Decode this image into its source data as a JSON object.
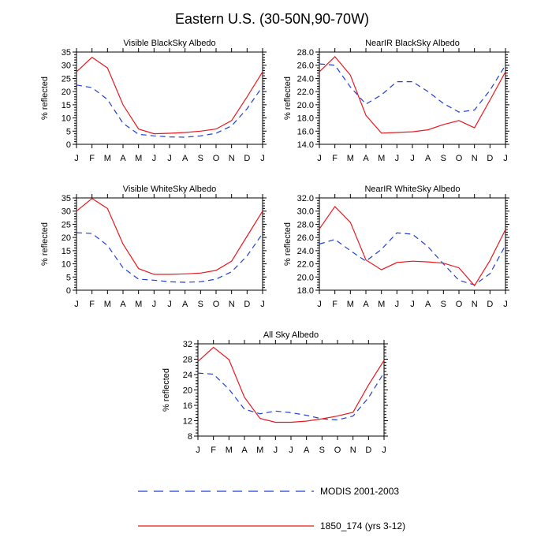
{
  "title": "Eastern U.S. (30-50N,90-70W)",
  "ylabel": "% reflected",
  "months": [
    "J",
    "F",
    "M",
    "A",
    "M",
    "J",
    "J",
    "A",
    "S",
    "O",
    "N",
    "D",
    "J"
  ],
  "colors": {
    "modis": "#1f3fd6",
    "model": "#e8181e"
  },
  "legend": [
    {
      "label": "MODIS 2001-2003",
      "style": "dashed",
      "color": "#1f3fd6"
    },
    {
      "label": "1850_174 (yrs 3-12)",
      "style": "solid",
      "color": "#e8181e"
    }
  ],
  "chart_data": [
    {
      "type": "line",
      "title": "Visible BlackSky Albedo",
      "ylim": [
        0,
        35
      ],
      "yticks": [
        0,
        5,
        10,
        15,
        20,
        25,
        30,
        35
      ],
      "ytick_labels": [
        "0",
        "5",
        "10",
        "15",
        "20",
        "25",
        "30",
        "35"
      ],
      "series": [
        {
          "name": "MODIS 2001-2003",
          "values": [
            22.5,
            21.5,
            17,
            8,
            3.8,
            3.2,
            2.8,
            2.7,
            3.2,
            4.2,
            7,
            13.5,
            22
          ]
        },
        {
          "name": "1850_174 (yrs 3-12)",
          "values": [
            27.5,
            33,
            29,
            15,
            5.8,
            4,
            4.2,
            4.5,
            5,
            5.8,
            9,
            18,
            27.5
          ]
        }
      ]
    },
    {
      "type": "line",
      "title": "NearIR BlackSky Albedo",
      "ylim": [
        14,
        28
      ],
      "yticks": [
        14,
        16,
        18,
        20,
        22,
        24,
        26,
        28
      ],
      "ytick_labels": [
        "14.0",
        "16.0",
        "18.0",
        "20.0",
        "22.0",
        "24.0",
        "26.0",
        "28.0"
      ],
      "series": [
        {
          "name": "MODIS 2001-2003",
          "values": [
            26.2,
            26,
            22.7,
            20.1,
            21.5,
            23.5,
            23.5,
            22,
            20.2,
            18.9,
            19.2,
            22.2,
            26
          ]
        },
        {
          "name": "1850_174 (yrs 3-12)",
          "values": [
            25,
            27.3,
            24.5,
            18.4,
            15.7,
            15.8,
            15.9,
            16.2,
            17,
            17.6,
            16.5,
            20.7,
            25
          ]
        }
      ]
    },
    {
      "type": "line",
      "title": "Visible WhiteSky Albedo",
      "ylim": [
        0,
        35
      ],
      "yticks": [
        0,
        5,
        10,
        15,
        20,
        25,
        30,
        35
      ],
      "ytick_labels": [
        "0",
        "5",
        "10",
        "15",
        "20",
        "25",
        "30",
        "35"
      ],
      "series": [
        {
          "name": "MODIS 2001-2003",
          "values": [
            21.8,
            21.5,
            17,
            8.5,
            4.2,
            3.8,
            3.2,
            3,
            3.2,
            4.2,
            7,
            13,
            21.5
          ]
        },
        {
          "name": "1850_174 (yrs 3-12)",
          "values": [
            30,
            34.8,
            31,
            17.5,
            8.2,
            6,
            6,
            6.2,
            6.5,
            7.5,
            11,
            20.5,
            30
          ]
        }
      ]
    },
    {
      "type": "line",
      "title": "NearIR WhiteSky Albedo",
      "ylim": [
        18,
        32
      ],
      "yticks": [
        18,
        20,
        22,
        24,
        26,
        28,
        30,
        32
      ],
      "ytick_labels": [
        "18.0",
        "20.0",
        "22.0",
        "24.0",
        "26.0",
        "28.0",
        "30.0",
        "32.0"
      ],
      "series": [
        {
          "name": "MODIS 2001-2003",
          "values": [
            25,
            25.7,
            24,
            22.4,
            24.2,
            26.7,
            26.5,
            24.6,
            22,
            19.5,
            18.8,
            20.5,
            24.8
          ]
        },
        {
          "name": "1850_174 (yrs 3-12)",
          "values": [
            27.3,
            30.7,
            28.3,
            22.6,
            21.1,
            22.2,
            22.4,
            22.3,
            22.1,
            21.4,
            18.7,
            22.5,
            27.2
          ]
        }
      ]
    },
    {
      "type": "line",
      "title": "All Sky Albedo",
      "ylim": [
        8,
        32
      ],
      "yticks": [
        8,
        12,
        16,
        20,
        24,
        28,
        32
      ],
      "ytick_labels": [
        "8",
        "12",
        "16",
        "20",
        "24",
        "28",
        "32"
      ],
      "series": [
        {
          "name": "MODIS 2001-2003",
          "values": [
            24.4,
            24.1,
            20.2,
            15,
            13.8,
            14.5,
            14.1,
            13.4,
            12.5,
            12.2,
            13.2,
            18,
            24.5
          ]
        },
        {
          "name": "1850_174 (yrs 3-12)",
          "values": [
            27.4,
            31.1,
            27.9,
            18.1,
            12.6,
            11.6,
            11.6,
            11.9,
            12.5,
            13.2,
            14.2,
            21.3,
            27.7
          ]
        }
      ]
    }
  ]
}
